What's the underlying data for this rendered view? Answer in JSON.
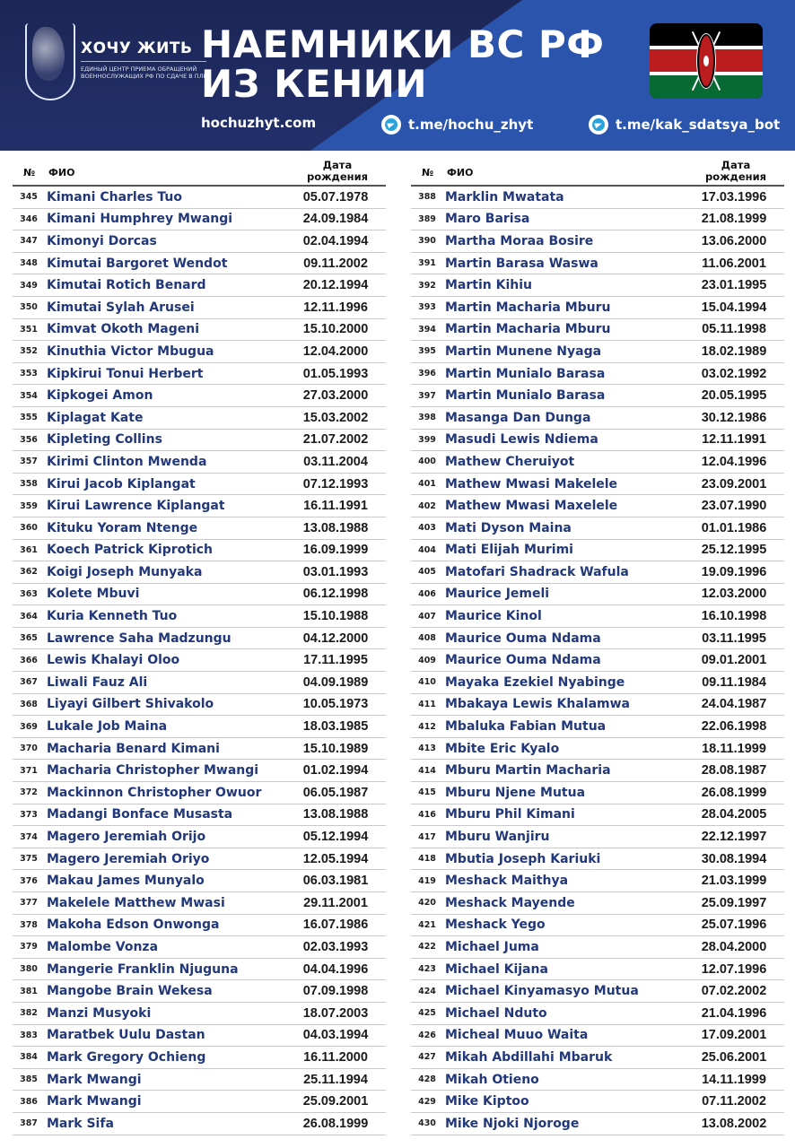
{
  "header": {
    "logo_title": "ХОЧУ ЖИТЬ",
    "logo_subtitle": "ЕДИНЫЙ ЦЕНТР ПРИЕМА ОБРАЩЕНИЙ ВОЕННОСЛУЖАЩИХ РФ ПО СДАЧЕ В ПЛЕН",
    "title_line1": "НАЕМНИКИ ВС РФ",
    "title_line2": "ИЗ КЕНИИ",
    "website": "hochuzhyt.com",
    "telegram1": "t.me/hochu_zhyt",
    "telegram2": "t.me/kak_sdatsya_bot",
    "flag": "kenya-flag"
  },
  "colors": {
    "banner_dark": "#1c2656",
    "banner_blue": "#2b55ad",
    "name_text": "#22387a"
  },
  "table": {
    "col_num": "№",
    "col_name": "ФИО",
    "col_date_line1": "Дата",
    "col_date_line2": "рождения",
    "left": [
      [
        "345",
        "Kimani Charles Tuo",
        "05.07.1978"
      ],
      [
        "346",
        "Kimani Humphrey Mwangi",
        "24.09.1984"
      ],
      [
        "347",
        "Kimonyi Dorcas",
        "02.04.1994"
      ],
      [
        "348",
        "Kimutai Bargoret Wendot",
        "09.11.2002"
      ],
      [
        "349",
        "Kimutai Rotich Benard",
        "20.12.1994"
      ],
      [
        "350",
        "Kimutai Sylah Arusei",
        "12.11.1996"
      ],
      [
        "351",
        "Kimvat Okoth Mageni",
        "15.10.2000"
      ],
      [
        "352",
        "Kinuthia Victor Mbugua",
        "12.04.2000"
      ],
      [
        "353",
        "Kipkirui Tonui Herbert",
        "01.05.1993"
      ],
      [
        "354",
        "Kipkogei Amon",
        "27.03.2000"
      ],
      [
        "355",
        "Kiplagat Kate",
        "15.03.2002"
      ],
      [
        "356",
        "Kipleting Collins",
        "21.07.2002"
      ],
      [
        "357",
        "Kirimi Clinton Mwenda",
        "03.11.2004"
      ],
      [
        "358",
        "Kirui Jacob Kiplangat",
        "07.12.1993"
      ],
      [
        "359",
        "Kirui Lawrence Kiplangat",
        "16.11.1991"
      ],
      [
        "360",
        "Kituku Yoram Ntenge",
        "13.08.1988"
      ],
      [
        "361",
        "Koech Patrick Kiprotich",
        "16.09.1999"
      ],
      [
        "362",
        "Koigi Joseph Munyaka",
        "03.01.1993"
      ],
      [
        "363",
        "Kolete Mbuvi",
        "06.12.1998"
      ],
      [
        "364",
        "Kuria Kenneth Tuo",
        "15.10.1988"
      ],
      [
        "365",
        "Lawrence Saha Madzungu",
        "04.12.2000"
      ],
      [
        "366",
        "Lewis Khalayi Oloo",
        "17.11.1995"
      ],
      [
        "367",
        "Liwali Fauz Ali",
        "04.09.1989"
      ],
      [
        "368",
        "Liyayi Gilbert Shivakolo",
        "10.05.1973"
      ],
      [
        "369",
        "Lukale Job Maina",
        "18.03.1985"
      ],
      [
        "370",
        "Macharia Benard Kimani",
        "15.10.1989"
      ],
      [
        "371",
        "Macharia Christopher Mwangi",
        "01.02.1994"
      ],
      [
        "372",
        "Mackinnon Christopher Owuor",
        "06.05.1987"
      ],
      [
        "373",
        "Madangi Bonface Musasta",
        "13.08.1988"
      ],
      [
        "374",
        "Magero Jeremiah Orijo",
        "05.12.1994"
      ],
      [
        "375",
        "Magero Jeremiah Oriyo",
        "12.05.1994"
      ],
      [
        "376",
        "Makau James Munyalo",
        "06.03.1981"
      ],
      [
        "377",
        "Makelele Matthew Mwasi",
        "29.11.2001"
      ],
      [
        "378",
        "Makoha Edson Onwonga",
        "16.07.1986"
      ],
      [
        "379",
        "Malombe Vonza",
        "02.03.1993"
      ],
      [
        "380",
        "Mangerie Franklin Njuguna",
        "04.04.1996"
      ],
      [
        "381",
        "Mangobe Brain Wekesa",
        "07.09.1998"
      ],
      [
        "382",
        "Manzi Musyoki",
        "18.07.2003"
      ],
      [
        "383",
        "Maratbek Uulu Dastan",
        "04.03.1994"
      ],
      [
        "384",
        "Mark Gregory Ochieng",
        "16.11.2000"
      ],
      [
        "385",
        "Mark Mwangi",
        "25.11.1994"
      ],
      [
        "386",
        "Mark Mwangi",
        "25.09.2001"
      ],
      [
        "387",
        "Mark Sifa",
        "26.08.1999"
      ]
    ],
    "right": [
      [
        "388",
        "Marklin Mwatata",
        "17.03.1996"
      ],
      [
        "389",
        "Maro Barisa",
        "21.08.1999"
      ],
      [
        "390",
        "Martha Moraa Bosire",
        "13.06.2000"
      ],
      [
        "391",
        "Martin Barasa Waswa",
        "11.06.2001"
      ],
      [
        "392",
        "Martin Kihiu",
        "23.01.1995"
      ],
      [
        "393",
        "Martin Macharia Mburu",
        "15.04.1994"
      ],
      [
        "394",
        "Martin Macharia Mburu",
        "05.11.1998"
      ],
      [
        "395",
        "Martin Munene Nyaga",
        "18.02.1989"
      ],
      [
        "396",
        "Martin Munialo Barasa",
        "03.02.1992"
      ],
      [
        "397",
        "Martin Munialo Barasa",
        "20.05.1995"
      ],
      [
        "398",
        "Masanga Dan Dunga",
        "30.12.1986"
      ],
      [
        "399",
        "Masudi Lewis Ndiema",
        "12.11.1991"
      ],
      [
        "400",
        "Mathew Cheruiyot",
        "12.04.1996"
      ],
      [
        "401",
        "Mathew Mwasi Makelele",
        "23.09.2001"
      ],
      [
        "402",
        "Mathew Mwasi Maxelele",
        "23.07.1990"
      ],
      [
        "403",
        "Mati Dyson Maina",
        "01.01.1986"
      ],
      [
        "404",
        "Mati Elijah Murimi",
        "25.12.1995"
      ],
      [
        "405",
        "Matofari Shadrack Wafula",
        "19.09.1996"
      ],
      [
        "406",
        "Maurice Jemeli",
        "12.03.2000"
      ],
      [
        "407",
        "Maurice Kinol",
        "16.10.1998"
      ],
      [
        "408",
        "Maurice Ouma Ndama",
        "03.11.1995"
      ],
      [
        "409",
        "Maurice Ouma Ndama",
        "09.01.2001"
      ],
      [
        "410",
        "Mayaka Ezekiel Nyabinge",
        "09.11.1984"
      ],
      [
        "411",
        "Mbakaya Lewis Khalamwa",
        "24.04.1987"
      ],
      [
        "412",
        "Mbaluka Fabian Mutua",
        "22.06.1998"
      ],
      [
        "413",
        "Mbite Eric Kyalo",
        "18.11.1999"
      ],
      [
        "414",
        "Mburu Martin Macharia",
        "28.08.1987"
      ],
      [
        "415",
        "Mburu Njene Mutua",
        "26.08.1999"
      ],
      [
        "416",
        "Mburu Phil Kimani",
        "28.04.2005"
      ],
      [
        "417",
        "Mburu Wanjiru",
        "22.12.1997"
      ],
      [
        "418",
        "Mbutia Joseph Kariuki",
        "30.08.1994"
      ],
      [
        "419",
        "Meshack Maithya",
        "21.03.1999"
      ],
      [
        "420",
        "Meshack Mayende",
        "25.09.1997"
      ],
      [
        "421",
        "Meshack Yego",
        "25.07.1996"
      ],
      [
        "422",
        "Michael Juma",
        "28.04.2000"
      ],
      [
        "423",
        "Michael Kijana",
        "12.07.1996"
      ],
      [
        "424",
        "Michael Kinyamasyo Mutua",
        "07.02.2002"
      ],
      [
        "425",
        "Michael Nduto",
        "21.04.1996"
      ],
      [
        "426",
        "Micheal Muuo Waita",
        "17.09.2001"
      ],
      [
        "427",
        "Mikah Abdillahi Mbaruk",
        "25.06.2001"
      ],
      [
        "428",
        "Mikah Otieno",
        "14.11.1999"
      ],
      [
        "429",
        "Mike Kiptoo",
        "07.11.2002"
      ],
      [
        "430",
        "Mike Njoki Njoroge",
        "13.08.2002"
      ]
    ]
  }
}
